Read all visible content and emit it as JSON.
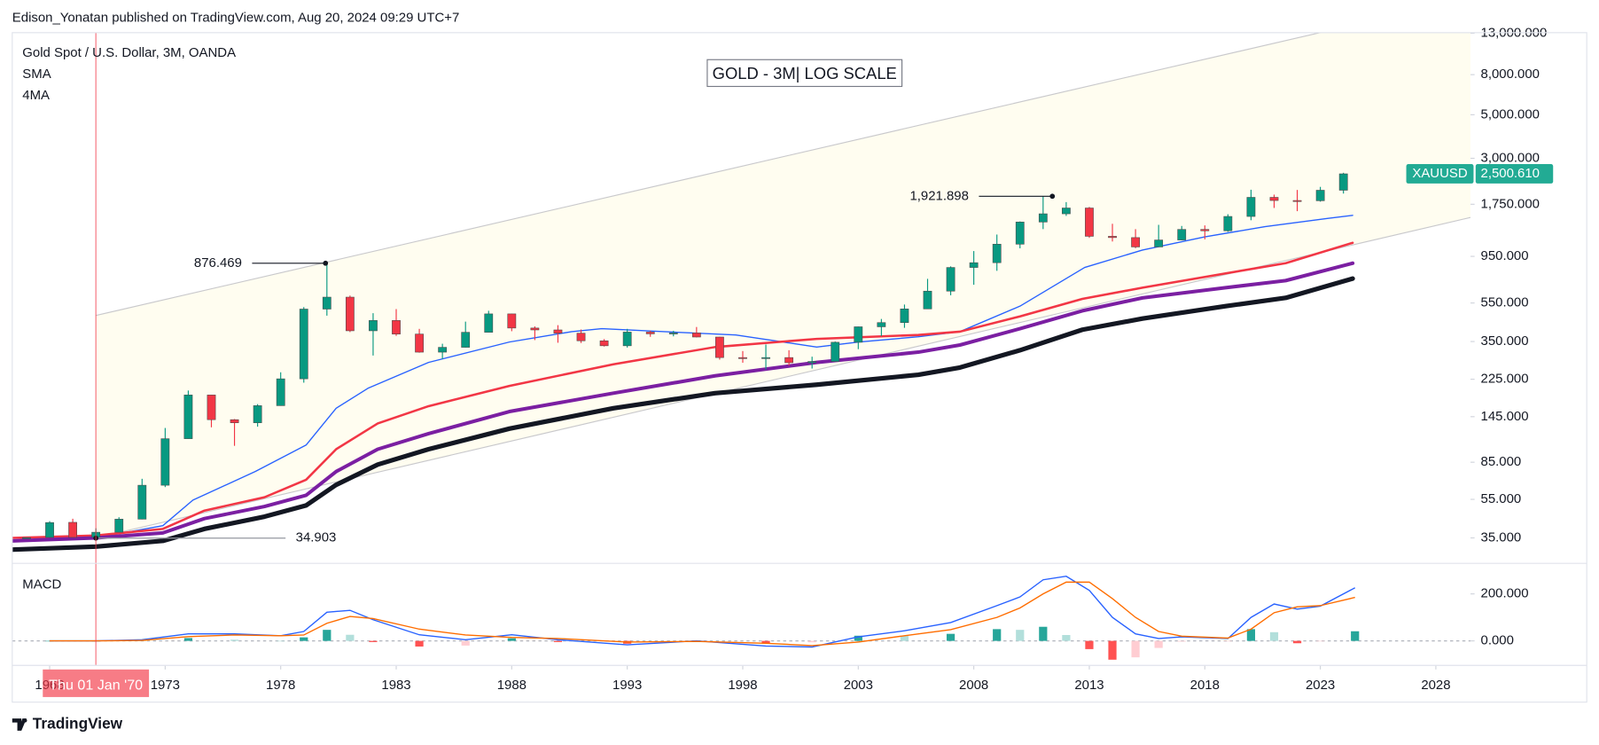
{
  "header": {
    "publisher": "Edison_Yonatan published on TradingView.com, Aug 20, 2024 09:29 UTC+7"
  },
  "footer": {
    "brand": "TradingView"
  },
  "chart_data": [
    {
      "type": "candlestick",
      "symbol_title": "Gold Spot / U.S. Dollar, 3M, OANDA",
      "indicators": [
        "SMA",
        "4MA"
      ],
      "title": "GOLD - 3M| LOG SCALE",
      "x": [
        1967,
        1968,
        1969,
        1970,
        1971,
        1972,
        1973,
        1974,
        1975,
        1976,
        1977,
        1978,
        1979,
        1980,
        1981,
        1982,
        1983,
        1984,
        1985,
        1986,
        1987,
        1988,
        1989,
        1990,
        1991,
        1992,
        1993,
        1994,
        1995,
        1996,
        1997,
        1998,
        1999,
        2000,
        2001,
        2002,
        2003,
        2004,
        2005,
        2006,
        2007,
        2008,
        2009,
        2010,
        2011,
        2012,
        2013,
        2014,
        2015,
        2016,
        2017,
        2018,
        2019,
        2020,
        2021,
        2022,
        2023,
        2024
      ],
      "open": [
        35,
        35.2,
        42,
        35.2,
        37.4,
        43.6,
        64.9,
        112,
        187,
        140,
        135,
        165,
        226,
        512,
        589,
        397,
        448,
        382,
        309,
        327,
        390,
        484,
        410,
        401,
        386,
        353,
        333,
        391,
        383,
        387,
        369,
        290,
        288,
        290,
        273,
        277,
        347,
        416,
        437,
        513,
        632,
        834,
        882,
        1096,
        1421,
        1565,
        1675,
        1202,
        1184,
        1061,
        1151,
        1303,
        1282,
        1517,
        1898,
        1829,
        1824,
        2063
      ],
      "high": [
        35.2,
        42.6,
        43.8,
        39.2,
        44.6,
        70,
        127,
        197,
        187,
        141,
        168,
        244,
        524,
        876.469,
        600,
        488,
        512,
        406,
        341,
        442,
        502,
        485,
        418,
        424,
        403,
        360,
        406,
        397,
        397,
        415,
        370,
        313,
        338,
        316,
        293,
        350,
        417,
        456,
        540,
        730,
        845,
        1011,
        1227,
        1431,
        1921.898,
        1795,
        1696,
        1392,
        1307,
        1375,
        1357,
        1366,
        1557,
        2075,
        1959,
        2070,
        2146,
        2531
      ],
      "low": [
        34.95,
        35,
        35.2,
        34.903,
        37.3,
        43.5,
        63.5,
        112,
        128,
        103,
        129,
        165,
        216,
        474,
        391,
        297,
        374,
        307,
        285,
        326,
        390,
        395,
        356,
        345,
        344,
        330,
        326,
        370,
        372,
        367,
        283,
        273,
        252,
        264,
        255,
        277,
        320,
        373,
        411,
        513,
        602,
        681,
        802,
        1044,
        1308,
        1527,
        1180,
        1131,
        1046,
        1061,
        1146,
        1160,
        1266,
        1451,
        1676,
        1614,
        1804,
        1984
      ],
      "close": [
        35.1,
        41.9,
        35.2,
        37.4,
        43.6,
        64.9,
        112,
        187,
        140,
        135,
        165,
        226,
        512,
        589,
        397,
        448,
        382,
        309,
        327,
        390,
        484,
        410,
        401,
        386,
        353,
        333,
        391,
        383,
        387,
        369,
        290,
        288,
        290,
        273,
        277,
        347,
        416,
        437,
        513,
        632,
        834,
        882,
        1096,
        1421,
        1565,
        1675,
        1202,
        1184,
        1061,
        1151,
        1303,
        1282,
        1517,
        1898,
        1829,
        1824,
        2063,
        2500.61
      ],
      "up_color": "#089981",
      "down_color": "#f23645",
      "log_scale": true,
      "grid": false,
      "ylim": [
        26.6,
        13090
      ],
      "yticks": [
        {
          "value": 35,
          "label": "35.000"
        },
        {
          "value": 55,
          "label": "55.000"
        },
        {
          "value": 85,
          "label": "85.000"
        },
        {
          "value": 145,
          "label": "145.000"
        },
        {
          "value": 225,
          "label": "225.000"
        },
        {
          "value": 350,
          "label": "350.000"
        },
        {
          "value": 550,
          "label": "550.000"
        },
        {
          "value": 950,
          "label": "950.000"
        },
        {
          "value": 1750,
          "label": "1,750.000"
        },
        {
          "value": 3000,
          "label": "3,000.000"
        },
        {
          "value": 5000,
          "label": "5,000.000"
        },
        {
          "value": 8000,
          "label": "8,000.000"
        },
        {
          "value": 13000,
          "label": "13,000.000"
        }
      ],
      "xlim": [
        1966.38,
        2029.5
      ],
      "xticks": [
        1968,
        1973,
        1978,
        1983,
        1988,
        1993,
        1998,
        2003,
        2008,
        2013,
        2018,
        2023,
        2028
      ],
      "moving_averages": [
        {
          "color": "#2962ff",
          "width": 1.2,
          "x": [
            1966.4,
            1970,
            1972.9,
            1974.2,
            1976.9,
            1979.1,
            1980.4,
            1981.8,
            1984.4,
            1987.9,
            1990.6,
            1991.9,
            1994.6,
            1997.7,
            2001.2,
            2003,
            2005.6,
            2007.4,
            2010,
            2012.8,
            2015.3,
            2018,
            2020.6,
            2023.3,
            2024.4
          ],
          "values": [
            35,
            35,
            40.4,
            54.5,
            76.2,
            104,
            160,
            203,
            274,
            348,
            393,
            407,
            393,
            378,
            328,
            348,
            370,
            393,
            530,
            834,
            1023,
            1194,
            1346,
            1482,
            1536
          ]
        },
        {
          "color": "#f23645",
          "width": 2.2,
          "x": [
            1966.4,
            1970,
            1972.9,
            1974.7,
            1977.3,
            1979.1,
            1980.4,
            1982.2,
            1984.4,
            1987.9,
            1992.4,
            1996.8,
            2001.2,
            2005.6,
            2007.4,
            2010,
            2012.7,
            2015.3,
            2018.9,
            2021.5,
            2024.4
          ],
          "values": [
            35,
            36,
            38.9,
            48.2,
            56.4,
            69.2,
            99,
            134,
            164,
            208,
            268,
            328,
            361,
            378,
            393,
            470,
            577,
            658,
            778,
            877,
            1114
          ]
        },
        {
          "color": "#7b1fa2",
          "width": 3.5,
          "x": [
            1966.4,
            1970,
            1972.9,
            1974.7,
            1977.3,
            1979.1,
            1980.4,
            1982.2,
            1984.4,
            1987.9,
            1992.4,
            1996.8,
            2001.2,
            2005.6,
            2007.4,
            2010,
            2012.7,
            2015.3,
            2018.9,
            2021.5,
            2024.4
          ],
          "values": [
            33.8,
            35,
            37.1,
            43.9,
            50.6,
            57.7,
            76.2,
            99,
            118.8,
            154,
            191,
            234,
            274,
            309,
            336,
            407,
            502,
            584,
            658,
            715,
            877
          ]
        },
        {
          "color": "#131722",
          "width": 4.5,
          "x": [
            1966.4,
            1970,
            1972.9,
            1974.7,
            1977.3,
            1979.1,
            1980.4,
            1982.2,
            1984.4,
            1987.9,
            1992.4,
            1996.8,
            2001.2,
            2005.6,
            2007.4,
            2010,
            2012.7,
            2015.3,
            2018.9,
            2021.5,
            2024.4
          ],
          "values": [
            30.5,
            31.6,
            33.8,
            38.9,
            44.9,
            51.2,
            65.2,
            82.7,
            99,
            126,
            160,
            191,
            211,
            237,
            258,
            316,
            402,
            458,
            530,
            584,
            732
          ]
        }
      ],
      "channel": {
        "x": [
          1970,
          2022.8
        ],
        "upper": [
          475,
          12940
        ],
        "lower": [
          35,
          982
        ],
        "color": "#c9c9cc",
        "fill": "#fffdf0"
      },
      "annotations": [
        {
          "x": 1979.94,
          "value": 876.469,
          "label": "876.469"
        },
        {
          "x": 2011.4,
          "value": 1921.898,
          "label": "1,921.898"
        },
        {
          "x": 1970,
          "value": 34.903,
          "label": "34.903"
        }
      ],
      "last_price": {
        "symbol": "XAUUSD",
        "value": 2500.61,
        "label": "2,500.610",
        "color": "#22ab94"
      },
      "crosshair": {
        "x": 1970,
        "label": "Thu 01 Jan '70",
        "color": "#f23645"
      }
    },
    {
      "type": "macd",
      "title": "MACD",
      "x": [
        1968,
        1970,
        1972,
        1974,
        1976,
        1978,
        1979,
        1980,
        1981,
        1982,
        1984,
        1986,
        1988,
        1990,
        1993,
        1996,
        1999,
        2001,
        2003,
        2005,
        2007,
        2009,
        2010,
        2011,
        2012,
        2013,
        2014,
        2015,
        2016,
        2017,
        2019,
        2020,
        2021,
        2022,
        2023,
        2024.5
      ],
      "series": [
        {
          "color": "#2962ff",
          "values": [
            0,
            0,
            5,
            30,
            30,
            22,
            40,
            122,
            130,
            90,
            26,
            5,
            26,
            5,
            -17,
            0,
            -22,
            -26,
            17,
            43,
            78,
            150,
            187,
            260,
            275,
            215,
            100,
            30,
            10,
            17,
            10,
            100,
            157,
            135,
            148,
            226
          ]
        },
        {
          "color": "#ff6d00",
          "values": [
            0,
            0,
            2,
            18,
            25,
            22,
            25,
            75,
            104,
            95,
            50,
            25,
            15,
            10,
            -5,
            -2,
            -10,
            -20,
            -5,
            22,
            48,
            100,
            140,
            200,
            250,
            250,
            180,
            100,
            40,
            20,
            12,
            50,
            120,
            145,
            150,
            185
          ]
        }
      ],
      "histogram": [
        0,
        0,
        3,
        12,
        5,
        0,
        15,
        47,
        26,
        -5,
        -24,
        -20,
        11,
        -5,
        -12,
        2,
        -12,
        -6,
        22,
        21,
        30,
        50,
        47,
        60,
        25,
        -35,
        -80,
        -70,
        -30,
        -3,
        -2,
        50,
        37,
        -10,
        -2,
        41
      ],
      "histogram_colors": [
        "#26a69a",
        "#b2dfdb",
        "#ff5252",
        "#ffcdd2"
      ],
      "ylim": [
        -95.6,
        330
      ],
      "yticks": [
        {
          "value": 0,
          "label": "0.000"
        },
        {
          "value": 200,
          "label": "200.000"
        }
      ]
    }
  ]
}
